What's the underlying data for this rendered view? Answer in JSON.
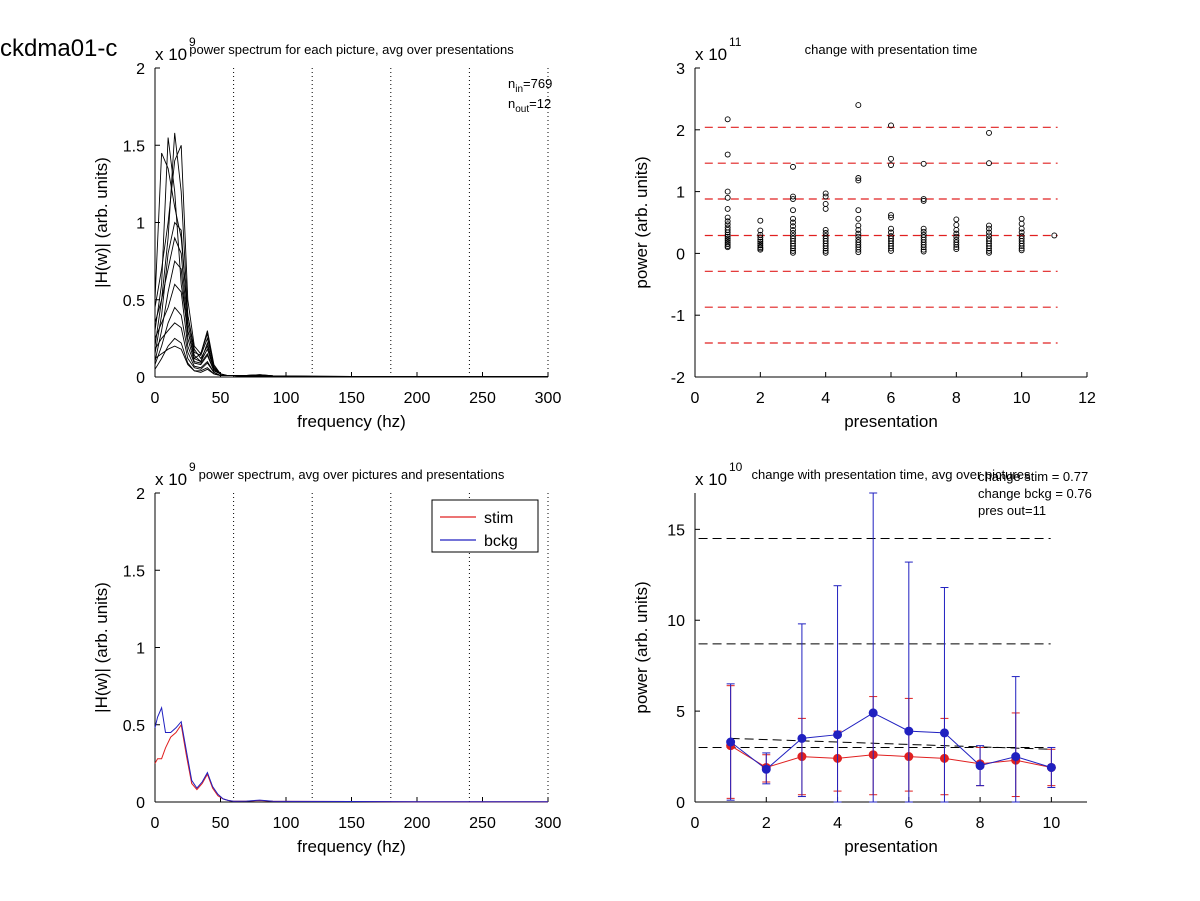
{
  "figure": {
    "suptitle": "ckdma01-c"
  },
  "chart_data": [
    {
      "id": "tl",
      "type": "line",
      "title": "power spectrum for each picture, avg over presentations",
      "xlabel": "frequency (hz)",
      "ylabel": "|H(w)| (arb. units)",
      "xlim": [
        0,
        300
      ],
      "ylim": [
        0,
        2
      ],
      "xticks": [
        0,
        50,
        100,
        150,
        200,
        250,
        300
      ],
      "yticks": [
        0,
        0.5,
        1,
        1.5,
        2
      ],
      "y_multiplier": "x 10",
      "y_exponent": "9",
      "vlines": [
        60,
        120,
        180,
        240,
        300
      ],
      "annotation": {
        "n_in_label": "n",
        "n_in_sub": "in",
        "n_in_value": "=769",
        "n_out_label": "n",
        "n_out_sub": "out",
        "n_out_value": "=12"
      },
      "x": [
        0,
        5,
        10,
        15,
        20,
        25,
        30,
        35,
        40,
        45,
        50,
        55,
        60,
        70,
        80,
        90,
        100,
        120,
        150,
        180,
        210,
        240,
        270,
        300
      ],
      "series": [
        {
          "values": [
            0.5,
            1.45,
            1.35,
            1.1,
            0.9,
            0.4,
            0.18,
            0.12,
            0.2,
            0.06,
            0.02,
            0.01,
            0.01,
            0.01,
            0.015,
            0.008,
            0.006,
            0.005,
            0.004,
            0.003,
            0.002,
            0.002,
            0.001,
            0.001
          ]
        },
        {
          "values": [
            0.3,
            0.6,
            1.55,
            1.2,
            0.6,
            0.3,
            0.12,
            0.15,
            0.3,
            0.08,
            0.02,
            0.01,
            0.01,
            0.01,
            0.012,
            0.008,
            0.006,
            0.004,
            0.004,
            0.003,
            0.002,
            0.002,
            0.001,
            0.001
          ]
        },
        {
          "values": [
            0.2,
            0.5,
            0.9,
            1.58,
            1.2,
            0.4,
            0.16,
            0.14,
            0.25,
            0.07,
            0.02,
            0.01,
            0.01,
            0.01,
            0.012,
            0.007,
            0.005,
            0.004,
            0.003,
            0.003,
            0.002,
            0.001,
            0.001,
            0.001
          ]
        },
        {
          "values": [
            0.45,
            0.7,
            1.0,
            1.4,
            1.5,
            0.5,
            0.2,
            0.15,
            0.28,
            0.06,
            0.02,
            0.01,
            0.01,
            0.01,
            0.015,
            0.008,
            0.006,
            0.005,
            0.004,
            0.003,
            0.002,
            0.002,
            0.001,
            0.001
          ]
        },
        {
          "values": [
            0.15,
            0.4,
            0.8,
            1.0,
            0.95,
            0.35,
            0.14,
            0.1,
            0.22,
            0.05,
            0.02,
            0.01,
            0.01,
            0.008,
            0.01,
            0.006,
            0.005,
            0.004,
            0.003,
            0.002,
            0.002,
            0.001,
            0.001,
            0.001
          ]
        },
        {
          "values": [
            0.35,
            0.5,
            0.7,
            0.9,
            0.8,
            0.3,
            0.12,
            0.1,
            0.18,
            0.05,
            0.02,
            0.01,
            0.01,
            0.008,
            0.01,
            0.006,
            0.004,
            0.003,
            0.003,
            0.002,
            0.002,
            0.001,
            0.001,
            0.001
          ]
        },
        {
          "values": [
            0.1,
            0.3,
            0.55,
            0.75,
            0.7,
            0.25,
            0.1,
            0.09,
            0.15,
            0.04,
            0.02,
            0.01,
            0.01,
            0.006,
            0.008,
            0.005,
            0.004,
            0.003,
            0.002,
            0.002,
            0.001,
            0.001,
            0.001,
            0.001
          ]
        },
        {
          "values": [
            0.25,
            0.35,
            0.45,
            0.6,
            0.55,
            0.2,
            0.09,
            0.08,
            0.14,
            0.04,
            0.02,
            0.01,
            0.01,
            0.006,
            0.008,
            0.005,
            0.004,
            0.003,
            0.002,
            0.002,
            0.001,
            0.001,
            0.001,
            0.001
          ]
        },
        {
          "values": [
            0.08,
            0.2,
            0.35,
            0.45,
            0.4,
            0.16,
            0.07,
            0.06,
            0.1,
            0.03,
            0.01,
            0.01,
            0.01,
            0.005,
            0.006,
            0.004,
            0.003,
            0.002,
            0.002,
            0.001,
            0.001,
            0.001,
            0.001,
            0.001
          ]
        },
        {
          "values": [
            0.18,
            0.25,
            0.3,
            0.35,
            0.32,
            0.12,
            0.06,
            0.05,
            0.09,
            0.03,
            0.01,
            0.01,
            0.01,
            0.005,
            0.006,
            0.004,
            0.003,
            0.002,
            0.002,
            0.001,
            0.001,
            0.001,
            0.001,
            0.001
          ]
        },
        {
          "values": [
            0.05,
            0.12,
            0.2,
            0.25,
            0.22,
            0.09,
            0.04,
            0.04,
            0.06,
            0.02,
            0.01,
            0.01,
            0.01,
            0.004,
            0.005,
            0.003,
            0.002,
            0.002,
            0.001,
            0.001,
            0.001,
            0.001,
            0.001,
            0.001
          ]
        },
        {
          "values": [
            0.12,
            0.15,
            0.18,
            0.2,
            0.18,
            0.08,
            0.04,
            0.03,
            0.05,
            0.02,
            0.01,
            0.01,
            0.01,
            0.004,
            0.005,
            0.003,
            0.002,
            0.002,
            0.001,
            0.001,
            0.001,
            0.001,
            0.001,
            0.001
          ]
        }
      ]
    },
    {
      "id": "tr",
      "type": "scatter",
      "title": "change with presentation time",
      "xlabel": "presentation",
      "ylabel": "power (arb. units)",
      "xlim": [
        0,
        12
      ],
      "ylim": [
        -2,
        3
      ],
      "xticks": [
        0,
        2,
        4,
        6,
        8,
        10,
        12
      ],
      "yticks": [
        -2,
        -1,
        0,
        1,
        2,
        3
      ],
      "y_multiplier": "x 10",
      "y_exponent": "11",
      "hlines": [
        2.04,
        1.46,
        0.88,
        0.29,
        -0.29,
        -0.87,
        -1.45
      ],
      "hline_color": "#e02020",
      "points": [
        [
          1,
          2.17
        ],
        [
          1,
          1.6
        ],
        [
          1,
          1.0
        ],
        [
          1,
          0.9
        ],
        [
          1,
          0.72
        ],
        [
          1,
          0.58
        ],
        [
          1,
          0.52
        ],
        [
          1,
          0.47
        ],
        [
          1,
          0.42
        ],
        [
          1,
          0.38
        ],
        [
          1,
          0.34
        ],
        [
          1,
          0.3
        ],
        [
          1,
          0.27
        ],
        [
          1,
          0.24
        ],
        [
          1,
          0.21
        ],
        [
          1,
          0.18
        ],
        [
          1,
          0.15
        ],
        [
          1,
          0.12
        ],
        [
          1,
          0.1
        ],
        [
          2,
          0.53
        ],
        [
          2,
          0.37
        ],
        [
          2,
          0.3
        ],
        [
          2,
          0.26
        ],
        [
          2,
          0.22
        ],
        [
          2,
          0.19
        ],
        [
          2,
          0.16
        ],
        [
          2,
          0.13
        ],
        [
          2,
          0.1
        ],
        [
          2,
          0.08
        ],
        [
          2,
          0.06
        ],
        [
          3,
          1.4
        ],
        [
          3,
          0.92
        ],
        [
          3,
          0.88
        ],
        [
          3,
          0.7
        ],
        [
          3,
          0.56
        ],
        [
          3,
          0.5
        ],
        [
          3,
          0.44
        ],
        [
          3,
          0.38
        ],
        [
          3,
          0.33
        ],
        [
          3,
          0.28
        ],
        [
          3,
          0.24
        ],
        [
          3,
          0.2
        ],
        [
          3,
          0.16
        ],
        [
          3,
          0.12
        ],
        [
          3,
          0.08
        ],
        [
          3,
          0.04
        ],
        [
          3,
          0.01
        ],
        [
          4,
          0.97
        ],
        [
          4,
          0.92
        ],
        [
          4,
          0.8
        ],
        [
          4,
          0.72
        ],
        [
          4,
          0.38
        ],
        [
          4,
          0.33
        ],
        [
          4,
          0.28
        ],
        [
          4,
          0.24
        ],
        [
          4,
          0.2
        ],
        [
          4,
          0.16
        ],
        [
          4,
          0.12
        ],
        [
          4,
          0.08
        ],
        [
          4,
          0.04
        ],
        [
          4,
          0.01
        ],
        [
          5,
          2.4
        ],
        [
          5,
          1.22
        ],
        [
          5,
          1.18
        ],
        [
          5,
          0.7
        ],
        [
          5,
          0.56
        ],
        [
          5,
          0.45
        ],
        [
          5,
          0.38
        ],
        [
          5,
          0.32
        ],
        [
          5,
          0.27
        ],
        [
          5,
          0.22
        ],
        [
          5,
          0.18
        ],
        [
          5,
          0.14
        ],
        [
          5,
          0.1
        ],
        [
          5,
          0.06
        ],
        [
          5,
          0.02
        ],
        [
          6,
          2.07
        ],
        [
          6,
          1.53
        ],
        [
          6,
          1.43
        ],
        [
          6,
          0.62
        ],
        [
          6,
          0.58
        ],
        [
          6,
          0.4
        ],
        [
          6,
          0.34
        ],
        [
          6,
          0.28
        ],
        [
          6,
          0.24
        ],
        [
          6,
          0.2
        ],
        [
          6,
          0.16
        ],
        [
          6,
          0.12
        ],
        [
          6,
          0.08
        ],
        [
          6,
          0.04
        ],
        [
          7,
          1.45
        ],
        [
          7,
          0.88
        ],
        [
          7,
          0.85
        ],
        [
          7,
          0.4
        ],
        [
          7,
          0.35
        ],
        [
          7,
          0.3
        ],
        [
          7,
          0.26
        ],
        [
          7,
          0.22
        ],
        [
          7,
          0.18
        ],
        [
          7,
          0.14
        ],
        [
          7,
          0.1
        ],
        [
          7,
          0.06
        ],
        [
          7,
          0.03
        ],
        [
          8,
          0.55
        ],
        [
          8,
          0.46
        ],
        [
          8,
          0.38
        ],
        [
          8,
          0.32
        ],
        [
          8,
          0.27
        ],
        [
          8,
          0.22
        ],
        [
          8,
          0.18
        ],
        [
          8,
          0.14
        ],
        [
          8,
          0.1
        ],
        [
          8,
          0.07
        ],
        [
          9,
          1.95
        ],
        [
          9,
          1.46
        ],
        [
          9,
          0.45
        ],
        [
          9,
          0.4
        ],
        [
          9,
          0.34
        ],
        [
          9,
          0.29
        ],
        [
          9,
          0.24
        ],
        [
          9,
          0.2
        ],
        [
          9,
          0.16
        ],
        [
          9,
          0.12
        ],
        [
          9,
          0.08
        ],
        [
          9,
          0.04
        ],
        [
          9,
          0.01
        ],
        [
          10,
          0.56
        ],
        [
          10,
          0.48
        ],
        [
          10,
          0.4
        ],
        [
          10,
          0.34
        ],
        [
          10,
          0.28
        ],
        [
          10,
          0.24
        ],
        [
          10,
          0.2
        ],
        [
          10,
          0.16
        ],
        [
          10,
          0.12
        ],
        [
          10,
          0.08
        ],
        [
          10,
          0.05
        ],
        [
          11,
          0.29
        ]
      ]
    },
    {
      "id": "bl",
      "type": "line",
      "title": "power spectrum, avg over pictures and presentations",
      "xlabel": "frequency (hz)",
      "ylabel": "|H(w)| (arb. units)",
      "xlim": [
        0,
        300
      ],
      "ylim": [
        0,
        2
      ],
      "xticks": [
        0,
        50,
        100,
        150,
        200,
        250,
        300
      ],
      "yticks": [
        0,
        0.5,
        1,
        1.5,
        2
      ],
      "y_multiplier": "x 10",
      "y_exponent": "9",
      "vlines": [
        60,
        120,
        180,
        240,
        300
      ],
      "legend_position": "top-right",
      "x": [
        0,
        2,
        5,
        8,
        12,
        16,
        20,
        24,
        28,
        32,
        36,
        40,
        44,
        48,
        52,
        56,
        60,
        70,
        80,
        90,
        100,
        150,
        200,
        250,
        300
      ],
      "series": [
        {
          "name": "stim",
          "color": "#e02020",
          "values": [
            0.25,
            0.28,
            0.28,
            0.35,
            0.42,
            0.45,
            0.5,
            0.3,
            0.12,
            0.08,
            0.12,
            0.18,
            0.09,
            0.04,
            0.02,
            0.01,
            0.005,
            0.006,
            0.01,
            0.005,
            0.004,
            0.003,
            0.002,
            0.001,
            0.001
          ]
        },
        {
          "name": "bckg",
          "color": "#2020c0",
          "values": [
            0.48,
            0.55,
            0.61,
            0.45,
            0.45,
            0.48,
            0.52,
            0.33,
            0.14,
            0.09,
            0.13,
            0.19,
            0.1,
            0.05,
            0.02,
            0.01,
            0.005,
            0.006,
            0.012,
            0.005,
            0.004,
            0.003,
            0.002,
            0.001,
            0.001
          ]
        }
      ]
    },
    {
      "id": "br",
      "type": "line",
      "title": "change with presentation time, avg over pictures",
      "xlabel": "presentation",
      "ylabel": "power (arb. units)",
      "xlim": [
        0,
        11
      ],
      "ylim": [
        0,
        17
      ],
      "xticks": [
        0,
        2,
        4,
        6,
        8,
        10
      ],
      "yticks": [
        0,
        5,
        10,
        15
      ],
      "y_multiplier": "x 10",
      "y_exponent": "10",
      "annotations": [
        "change stim = 0.77",
        "change bckg = 0.76",
        "pres out=11"
      ],
      "hlines": [
        14.5,
        8.7,
        3.0
      ],
      "trend_line": {
        "from": [
          1,
          3.5
        ],
        "to": [
          10,
          2.9
        ]
      },
      "x": [
        1,
        2,
        3,
        4,
        5,
        6,
        7,
        8,
        9,
        10
      ],
      "series": [
        {
          "name": "stim",
          "color": "#e02020",
          "values": [
            3.1,
            1.9,
            2.5,
            2.4,
            2.6,
            2.5,
            2.4,
            2.1,
            2.3,
            1.9
          ],
          "err_low": [
            0.2,
            1.1,
            0.4,
            0.6,
            0.4,
            0.6,
            0.4,
            0.9,
            0.3,
            0.9
          ],
          "err_high": [
            6.4,
            2.6,
            4.6,
            3.9,
            5.8,
            5.7,
            4.6,
            3.0,
            4.9,
            2.9
          ]
        },
        {
          "name": "bckg",
          "color": "#2020c0",
          "values": [
            3.3,
            1.8,
            3.5,
            3.7,
            4.9,
            3.9,
            3.8,
            2.0,
            2.5,
            1.9
          ],
          "err_low": [
            0.1,
            1.0,
            0.3,
            0.0,
            0.0,
            0.0,
            0.0,
            0.9,
            0.0,
            0.8
          ],
          "err_high": [
            6.5,
            2.7,
            9.8,
            11.9,
            17.0,
            13.2,
            11.8,
            3.1,
            6.9,
            3.0
          ]
        }
      ]
    }
  ]
}
